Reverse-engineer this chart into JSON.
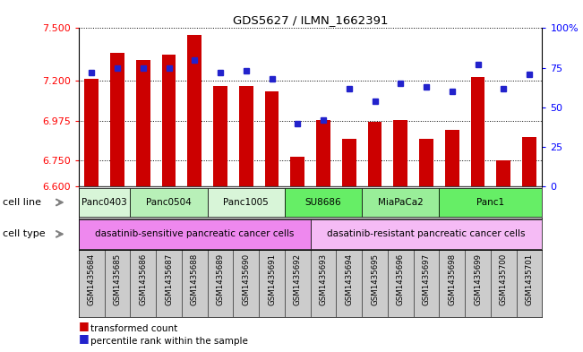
{
  "title": "GDS5627 / ILMN_1662391",
  "samples": [
    "GSM1435684",
    "GSM1435685",
    "GSM1435686",
    "GSM1435687",
    "GSM1435688",
    "GSM1435689",
    "GSM1435690",
    "GSM1435691",
    "GSM1435692",
    "GSM1435693",
    "GSM1435694",
    "GSM1435695",
    "GSM1435696",
    "GSM1435697",
    "GSM1435698",
    "GSM1435699",
    "GSM1435700",
    "GSM1435701"
  ],
  "transformed_count": [
    7.21,
    7.36,
    7.32,
    7.35,
    7.46,
    7.17,
    7.17,
    7.14,
    6.77,
    6.98,
    6.87,
    6.97,
    6.98,
    6.87,
    6.92,
    7.22,
    6.75,
    6.88
  ],
  "percentile_rank": [
    72,
    75,
    75,
    75,
    80,
    72,
    73,
    68,
    40,
    42,
    62,
    54,
    65,
    63,
    60,
    77,
    62,
    71
  ],
  "ymin": 6.6,
  "ymax": 7.5,
  "yticks": [
    6.6,
    6.75,
    6.975,
    7.2,
    7.5
  ],
  "right_yticks": [
    0,
    25,
    50,
    75,
    100
  ],
  "right_yticklabels": [
    "0",
    "25",
    "50",
    "75",
    "100%"
  ],
  "cell_lines": [
    {
      "label": "Panc0403",
      "start": 0,
      "end": 2,
      "color": "#d8f5d8"
    },
    {
      "label": "Panc0504",
      "start": 2,
      "end": 5,
      "color": "#b8f0b8"
    },
    {
      "label": "Panc1005",
      "start": 5,
      "end": 8,
      "color": "#d8f5d8"
    },
    {
      "label": "SU8686",
      "start": 8,
      "end": 11,
      "color": "#66ee66"
    },
    {
      "label": "MiaPaCa2",
      "start": 11,
      "end": 14,
      "color": "#99ee99"
    },
    {
      "label": "Panc1",
      "start": 14,
      "end": 18,
      "color": "#66ee66"
    }
  ],
  "cell_types": [
    {
      "label": "dasatinib-sensitive pancreatic cancer cells",
      "start": 0,
      "end": 9,
      "color": "#ee88ee"
    },
    {
      "label": "dasatinib-resistant pancreatic cancer cells",
      "start": 9,
      "end": 18,
      "color": "#f5bbf5"
    }
  ],
  "bar_color": "#cc0000",
  "dot_color": "#2222cc",
  "bg_color": "#ffffff",
  "tick_bg": "#cccccc",
  "bar_width": 0.55
}
